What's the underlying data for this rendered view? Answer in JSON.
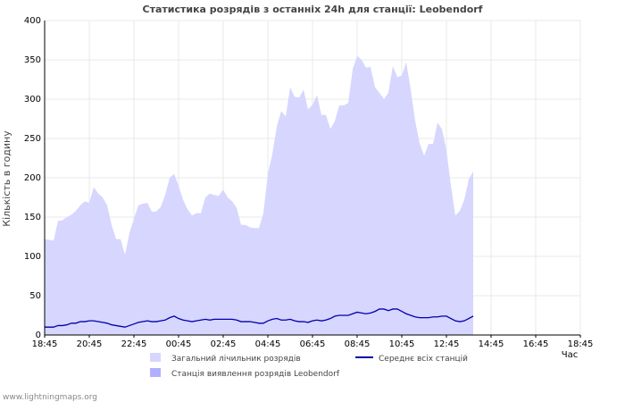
{
  "chart_data": {
    "type": "area",
    "title": "Статистика розрядів з останніх 24h для станції: Leobendorf",
    "ylabel": "Кількість в годину",
    "xlabel": "Час",
    "ylim": [
      0,
      400
    ],
    "yticks": [
      0,
      50,
      100,
      150,
      200,
      250,
      300,
      350,
      400
    ],
    "x_ticks": [
      "18:45",
      "20:45",
      "22:45",
      "00:45",
      "02:45",
      "04:45",
      "06:45",
      "08:45",
      "10:45",
      "12:45",
      "14:45",
      "16:45",
      "18:45"
    ],
    "x_tick_positions": [
      0,
      10,
      20,
      30,
      40,
      50,
      60,
      70,
      80,
      90,
      100,
      110,
      120
    ],
    "grid": true,
    "series": [
      {
        "name": "Загальний лічильник розрядів",
        "type": "area",
        "color": "#d6d6ff",
        "values": [
          122,
          121,
          120,
          145,
          146,
          150,
          153,
          158,
          165,
          170,
          168,
          188,
          180,
          175,
          165,
          140,
          122,
          122,
          102,
          130,
          148,
          165,
          167,
          168,
          157,
          157,
          163,
          178,
          200,
          205,
          190,
          172,
          160,
          152,
          155,
          155,
          175,
          180,
          178,
          177,
          185,
          175,
          170,
          162,
          140,
          140,
          137,
          136,
          136,
          155,
          205,
          230,
          265,
          285,
          278,
          315,
          303,
          302,
          312,
          287,
          293,
          305,
          280,
          280,
          262,
          272,
          292,
          292,
          295,
          338,
          355,
          350,
          340,
          341,
          315,
          308,
          300,
          308,
          342,
          328,
          330,
          347,
          312,
          272,
          244,
          228,
          243,
          243,
          270,
          262,
          235,
          190,
          152,
          158,
          172,
          198,
          208
        ]
      },
      {
        "name": "Станція виявлення розрядів Leobendorf",
        "type": "area",
        "color": "#b0b0ff",
        "values": [
          0
        ]
      },
      {
        "name": "Середнє всіх станцій",
        "type": "line",
        "color": "#0000aa",
        "values": [
          10,
          10,
          10,
          12,
          12,
          13,
          15,
          15,
          17,
          17,
          18,
          18,
          17,
          16,
          15,
          13,
          12,
          11,
          10,
          12,
          14,
          16,
          17,
          18,
          17,
          17,
          18,
          19,
          22,
          24,
          21,
          19,
          18,
          17,
          18,
          19,
          20,
          19,
          20,
          20,
          20,
          20,
          20,
          19,
          17,
          17,
          17,
          16,
          15,
          15,
          18,
          20,
          21,
          19,
          19,
          20,
          18,
          17,
          17,
          16,
          18,
          19,
          18,
          19,
          21,
          24,
          25,
          25,
          25,
          27,
          29,
          28,
          27,
          28,
          30,
          33,
          33,
          31,
          33,
          33,
          30,
          27,
          25,
          23,
          22,
          22,
          22,
          23,
          23,
          24,
          24,
          21,
          18,
          17,
          18,
          21,
          24
        ]
      }
    ]
  },
  "legend": {
    "item1": "Загальний лічильник розрядів",
    "item2": "Середнє всіх станцій",
    "item3": "Станція виявлення розрядів Leobendorf"
  },
  "footer": "www.lightningmaps.org",
  "colors": {
    "grid": "#e8e8e8",
    "axis": "#000000",
    "total_fill": "#d6d6ff",
    "station_fill": "#b0b0ff",
    "average_line": "#0000aa"
  }
}
